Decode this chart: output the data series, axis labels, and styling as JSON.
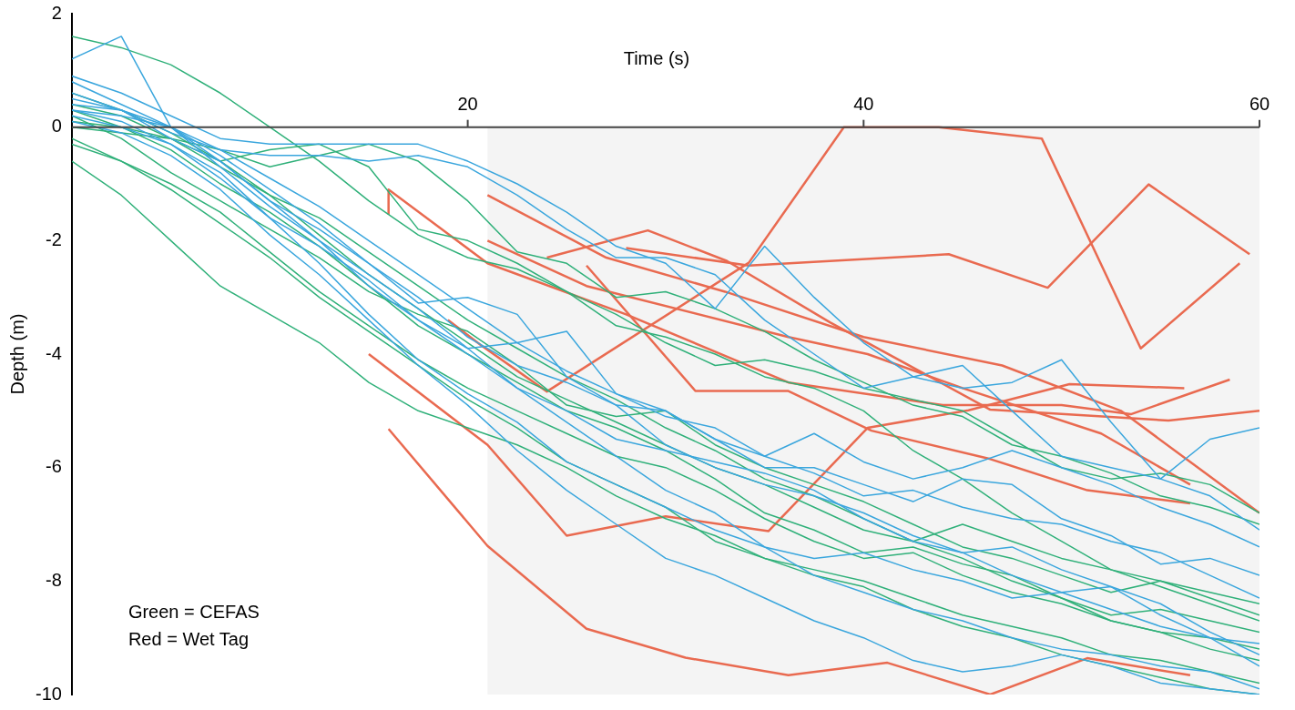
{
  "chart_data": {
    "type": "line",
    "xlabel": "Time (s)",
    "ylabel": "Depth (m)",
    "xlim": [
      0,
      60
    ],
    "xticks": [
      20,
      40,
      60
    ],
    "ylim": [
      -10,
      2
    ],
    "yticks": [
      -10,
      -8,
      -6,
      -4,
      -2,
      0,
      2
    ],
    "grid": false,
    "legend": false,
    "marker": "none",
    "annotations": [
      "Green = CEFAS",
      "Red = Wet Tag"
    ],
    "bands": [
      {
        "axis": "x",
        "from": 21,
        "to": 60,
        "color": "#f4f4f4"
      }
    ],
    "x": [
      0,
      2.5,
      5,
      7.5,
      10,
      12.5,
      15,
      17.5,
      20,
      22.5,
      25,
      27.5,
      30,
      32.5,
      35,
      37.5,
      40,
      42.5,
      45,
      47.5,
      50,
      52.5,
      55,
      57.5,
      60
    ],
    "series": [
      {
        "color": "#3aa6dd",
        "values": [
          0.3,
          0.2,
          0.0,
          -0.6,
          -1.3,
          -2.0,
          -2.6,
          -3.2,
          -3.9,
          -4.6,
          -5.2,
          -5.8,
          -6.4,
          -6.8,
          -7.4,
          -7.9,
          -8.2,
          -8.5,
          -8.7,
          -9.0,
          -9.2,
          -9.3,
          -9.5,
          -9.6,
          -9.9
        ]
      },
      {
        "color": "#3aa6dd",
        "values": [
          0.5,
          0.3,
          -0.1,
          -0.4,
          -0.5,
          -0.5,
          -0.6,
          -0.5,
          -0.7,
          -1.2,
          -1.8,
          -2.3,
          -2.3,
          -2.6,
          -3.4,
          -4.0,
          -4.6,
          -4.4,
          -4.2,
          -5.0,
          -5.8,
          -6.0,
          -6.2,
          -6.5,
          -7.1
        ]
      },
      {
        "color": "#3aa6dd",
        "values": [
          0.9,
          0.6,
          0.2,
          -0.2,
          -0.3,
          -0.3,
          -0.3,
          -0.3,
          -0.6,
          -1.0,
          -1.5,
          -2.1,
          -2.4,
          -3.2,
          -2.1,
          -3.0,
          -3.8,
          -4.4,
          -4.6,
          -4.5,
          -4.1,
          -5.2,
          -6.2,
          -5.5,
          -5.3
        ]
      },
      {
        "color": "#3aa6dd",
        "values": [
          1.2,
          1.6,
          0.0,
          -0.7,
          -1.4,
          -2.0,
          -2.8,
          -3.4,
          -3.9,
          -3.8,
          -3.6,
          -4.7,
          -5.1,
          -5.3,
          -5.8,
          -6.1,
          -6.5,
          -6.4,
          -6.7,
          -6.9,
          -7.0,
          -7.3,
          -7.5,
          -7.9,
          -8.3
        ]
      },
      {
        "color": "#3aa6dd",
        "values": [
          0.2,
          0.0,
          -0.3,
          -0.8,
          -1.6,
          -2.4,
          -3.3,
          -4.1,
          -4.7,
          -5.2,
          -5.9,
          -6.3,
          -6.7,
          -7.1,
          -7.4,
          -7.6,
          -7.5,
          -7.8,
          -8.0,
          -8.3,
          -8.2,
          -8.5,
          -8.8,
          -9.0,
          -9.1
        ]
      },
      {
        "color": "#3aa6dd",
        "values": [
          0.4,
          0.3,
          0.0,
          -0.5,
          -1.1,
          -1.7,
          -2.4,
          -3.0,
          -3.7,
          -4.2,
          -4.5,
          -4.9,
          -5.6,
          -6.0,
          -6.3,
          -6.5,
          -6.8,
          -7.2,
          -7.5,
          -7.4,
          -7.8,
          -8.1,
          -8.6,
          -9.0,
          -9.5
        ]
      },
      {
        "color": "#3aa6dd",
        "values": [
          0.6,
          0.3,
          -0.2,
          -0.6,
          -1.3,
          -1.8,
          -2.4,
          -3.1,
          -3.0,
          -3.3,
          -4.4,
          -4.9,
          -5.0,
          -5.5,
          -6.0,
          -6.0,
          -6.3,
          -6.6,
          -6.2,
          -6.3,
          -6.9,
          -7.2,
          -7.7,
          -7.6,
          -7.9
        ]
      },
      {
        "color": "#3aa6dd",
        "values": [
          0.1,
          -0.1,
          -0.5,
          -1.1,
          -1.9,
          -2.6,
          -3.4,
          -4.2,
          -4.9,
          -5.7,
          -6.4,
          -7.0,
          -7.6,
          -7.9,
          -8.3,
          -8.7,
          -9.0,
          -9.4,
          -9.6,
          -9.5,
          -9.3,
          -9.5,
          -9.8,
          -9.9,
          -10.0
        ]
      },
      {
        "color": "#3aa6dd",
        "values": [
          0.3,
          0.1,
          -0.3,
          -0.9,
          -1.6,
          -2.1,
          -2.7,
          -3.4,
          -4.0,
          -4.6,
          -5.0,
          -5.5,
          -5.7,
          -5.9,
          -6.1,
          -6.4,
          -6.9,
          -7.3,
          -7.5,
          -7.9,
          -8.2,
          -8.1,
          -8.4,
          -8.9,
          -9.3
        ]
      },
      {
        "color": "#3aa6dd",
        "values": [
          0.8,
          0.4,
          0.0,
          -0.4,
          -0.9,
          -1.4,
          -2.0,
          -2.6,
          -3.2,
          -3.8,
          -4.3,
          -4.7,
          -5.0,
          -5.5,
          -5.8,
          -5.4,
          -5.9,
          -6.2,
          -6.0,
          -5.7,
          -6.0,
          -6.3,
          -6.7,
          -7.0,
          -7.4
        ]
      },
      {
        "color": "#2fb079",
        "values": [
          1.6,
          1.4,
          1.1,
          0.6,
          0.0,
          -0.6,
          -1.3,
          -1.9,
          -2.3,
          -2.5,
          -2.9,
          -3.3,
          -3.8,
          -4.2,
          -4.1,
          -4.3,
          -4.6,
          -4.8,
          -5.0,
          -5.5,
          -6.0,
          -6.2,
          -6.1,
          -6.3,
          -6.8
        ]
      },
      {
        "color": "#2fb079",
        "values": [
          0.0,
          -0.1,
          -0.2,
          -0.4,
          -0.7,
          -0.5,
          -0.3,
          -0.6,
          -1.3,
          -2.2,
          -2.4,
          -3.0,
          -2.9,
          -3.2,
          -3.6,
          -4.1,
          -4.5,
          -4.9,
          -5.1,
          -5.6,
          -5.8,
          -6.1,
          -6.5,
          -6.7,
          -7.0
        ]
      },
      {
        "color": "#2fb079",
        "values": [
          -0.2,
          -0.6,
          -1.1,
          -1.7,
          -2.3,
          -3.0,
          -3.6,
          -4.2,
          -4.8,
          -5.3,
          -5.9,
          -6.3,
          -6.7,
          -7.3,
          -7.6,
          -7.9,
          -8.1,
          -8.5,
          -8.8,
          -9.0,
          -9.3,
          -9.5,
          -9.7,
          -9.9,
          -10.0
        ]
      },
      {
        "color": "#2fb079",
        "values": [
          -0.6,
          -1.2,
          -2.0,
          -2.8,
          -3.3,
          -3.8,
          -4.5,
          -5.0,
          -5.3,
          -5.6,
          -6.0,
          -6.5,
          -6.9,
          -7.2,
          -7.6,
          -7.8,
          -8.0,
          -8.3,
          -8.6,
          -8.8,
          -9.0,
          -9.3,
          -9.4,
          -9.6,
          -9.8
        ]
      },
      {
        "color": "#2fb079",
        "values": [
          0.3,
          0.0,
          -0.4,
          -1.0,
          -1.5,
          -2.1,
          -2.8,
          -3.5,
          -4.0,
          -4.5,
          -5.0,
          -5.3,
          -5.7,
          -6.2,
          -6.8,
          -7.1,
          -7.5,
          -7.4,
          -7.7,
          -7.9,
          -8.3,
          -8.6,
          -8.5,
          -8.7,
          -8.9
        ]
      },
      {
        "color": "#2fb079",
        "values": [
          0.2,
          -0.2,
          -0.8,
          -1.3,
          -1.8,
          -2.3,
          -2.9,
          -3.3,
          -3.6,
          -4.2,
          -4.9,
          -5.1,
          -5.0,
          -5.6,
          -6.0,
          -6.3,
          -6.6,
          -7.0,
          -7.4,
          -7.6,
          -7.9,
          -8.2,
          -8.0,
          -8.3,
          -8.6
        ]
      },
      {
        "color": "#2fb079",
        "values": [
          0.4,
          0.2,
          -0.2,
          -0.7,
          -1.2,
          -1.6,
          -2.2,
          -2.8,
          -3.4,
          -3.9,
          -4.4,
          -4.8,
          -5.3,
          -5.7,
          -6.2,
          -6.5,
          -6.9,
          -7.3,
          -7.6,
          -8.0,
          -8.3,
          -8.7,
          -8.9,
          -9.2,
          -9.4
        ]
      },
      {
        "color": "#2fb079",
        "values": [
          0.1,
          0.0,
          -0.2,
          -0.6,
          -0.4,
          -0.3,
          -0.7,
          -1.8,
          -2.0,
          -2.4,
          -2.9,
          -3.5,
          -3.7,
          -4.0,
          -4.4,
          -4.6,
          -5.0,
          -5.7,
          -6.2,
          -6.8,
          -7.3,
          -7.8,
          -8.1,
          -8.4,
          -8.7
        ]
      },
      {
        "color": "#2fb079",
        "values": [
          -0.3,
          -0.6,
          -1.0,
          -1.5,
          -2.2,
          -2.9,
          -3.5,
          -4.1,
          -4.6,
          -5.0,
          -5.4,
          -5.8,
          -6.0,
          -6.4,
          -6.9,
          -7.3,
          -7.6,
          -7.5,
          -7.9,
          -8.2,
          -8.4,
          -8.7,
          -8.9,
          -9.0,
          -9.2
        ]
      },
      {
        "color": "#2fb079",
        "values": [
          0.6,
          0.3,
          -0.1,
          -0.6,
          -1.2,
          -1.9,
          -2.6,
          -3.2,
          -3.8,
          -4.4,
          -4.8,
          -5.2,
          -5.6,
          -6.0,
          -6.3,
          -6.7,
          -7.1,
          -7.3,
          -7.0,
          -7.3,
          -7.6,
          -7.8,
          -8.0,
          -8.2,
          -8.4
        ]
      },
      {
        "color": "#e96a50",
        "x": [
          19,
          20.7,
          24,
          34.2,
          39,
          43.8,
          49,
          54,
          59
        ],
        "values": [
          -3.4,
          -3.85,
          -4.66,
          -2.39,
          0,
          0,
          -0.2,
          -3.9,
          -2.4
        ]
      },
      {
        "color": "#e96a50",
        "x": [
          24,
          29.1,
          33.1,
          38.3,
          46.4,
          55.4,
          60
        ],
        "values": [
          -2.3,
          -1.82,
          -2.36,
          -3.44,
          -4.98,
          -5.17,
          -5.0
        ]
      },
      {
        "color": "#e96a50",
        "x": [
          28,
          34.2,
          44.3,
          49.3,
          54.4,
          59.5
        ],
        "values": [
          -2.13,
          -2.44,
          -2.24,
          -2.83,
          -1.01,
          -2.24
        ]
      },
      {
        "color": "#e96a50",
        "x": [
          21,
          27,
          33,
          40,
          47,
          53,
          60
        ],
        "values": [
          -1.2,
          -2.3,
          -2.9,
          -3.7,
          -4.2,
          -5.0,
          -6.8
        ]
      },
      {
        "color": "#e96a50",
        "x": [
          21,
          26,
          36.2,
          40.2,
          45,
          52,
          56.5
        ],
        "values": [
          -2.0,
          -2.8,
          -3.7,
          -4.0,
          -4.6,
          -5.4,
          -6.3
        ]
      },
      {
        "color": "#e96a50",
        "x": [
          16,
          16,
          21,
          28,
          36.2,
          44,
          50,
          53.5,
          58.5
        ],
        "values": [
          -1.54,
          -1.1,
          -2.4,
          -3.3,
          -4.5,
          -4.9,
          -4.9,
          -5.06,
          -4.45
        ]
      },
      {
        "color": "#e96a50",
        "x": [
          26,
          31.5,
          36.2,
          40.4,
          46.4,
          51.3,
          56.5
        ],
        "values": [
          -2.44,
          -4.65,
          -4.65,
          -5.35,
          -5.85,
          -6.4,
          -6.63
        ]
      },
      {
        "color": "#e96a50",
        "x": [
          15,
          21,
          25,
          30,
          35.2,
          40.2,
          45.3,
          50.4,
          56.2
        ],
        "values": [
          -4.0,
          -5.6,
          -7.2,
          -6.86,
          -7.12,
          -5.3,
          -4.99,
          -4.53,
          -4.6
        ]
      },
      {
        "color": "#e96a50",
        "x": [
          16,
          21,
          26,
          31,
          36.2,
          41.2,
          46.4,
          51.3,
          56.5
        ],
        "values": [
          -5.32,
          -7.38,
          -8.84,
          -9.35,
          -9.66,
          -9.44,
          -10.0,
          -9.36,
          -9.66
        ]
      }
    ]
  }
}
